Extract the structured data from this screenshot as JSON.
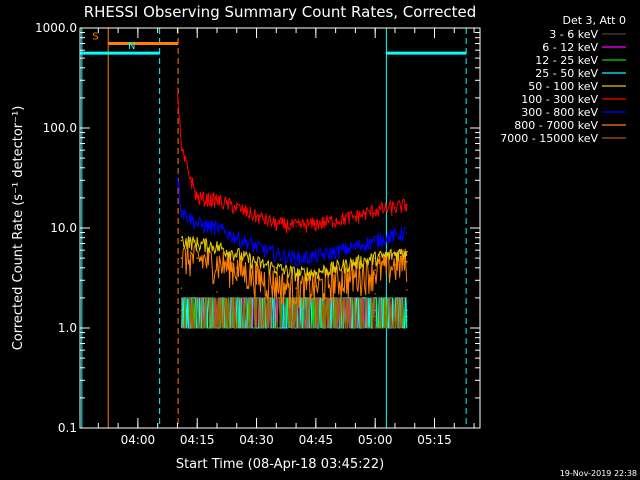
{
  "chart_data": {
    "type": "line",
    "title": "RHESSI Observing Summary Count Rates, Corrected",
    "xlabel": "Start Time (08-Apr-18 03:45:22)",
    "ylabel": "Corrected Count Rate (s⁻¹ detector⁻¹)",
    "footer": "19-Nov-2019 22:38",
    "y_scale": "log",
    "ylim": [
      0.1,
      1000
    ],
    "xlim": [
      "03:45:22",
      "05:26:30"
    ],
    "x_ticks": [
      "04:00",
      "04:15",
      "04:30",
      "04:45",
      "05:00",
      "05:15"
    ],
    "y_ticks": [
      "0.1",
      "1.0",
      "10.0",
      "100.0",
      "1000.0"
    ],
    "grid": false,
    "legend": {
      "position": "top-right",
      "title": "Det 3, Att 0",
      "entries": [
        {
          "label": "3 - 6 keV",
          "color": "#000000"
        },
        {
          "label": "6 - 12 keV",
          "color": "#ff00ff"
        },
        {
          "label": "12 - 25 keV",
          "color": "#00dd00"
        },
        {
          "label": "25 - 50 keV",
          "color": "#00ffff"
        },
        {
          "label": "50 - 100 keV",
          "color": "#e6c800"
        },
        {
          "label": "100 - 300 keV",
          "color": "#ff0000"
        },
        {
          "label": "300 - 800 keV",
          "color": "#0000ff"
        },
        {
          "label": "800 - 7000 keV",
          "color": "#ff8000"
        },
        {
          "label": "7000 - 15000 keV",
          "color": "#a06400"
        }
      ]
    },
    "flags": [
      {
        "label": "S",
        "color": "#ff8000",
        "start": "03:52:30",
        "end": "04:10:10",
        "level": 700
      },
      {
        "label": "N",
        "color": "#00ffff",
        "start": "03:45:22",
        "end": "04:05:30",
        "level": 560
      },
      {
        "label": "",
        "color": "#00ffff",
        "start": "05:02:50",
        "end": "05:23:00",
        "level": 560
      }
    ],
    "event_lines": [
      {
        "time": "03:52:30",
        "color": "#ff8000",
        "style": "solid"
      },
      {
        "time": "04:05:30",
        "color": "#00ffff",
        "style": "dashed"
      },
      {
        "time": "04:10:10",
        "color": "#ff8000",
        "style": "dashed"
      },
      {
        "time": "05:02:50",
        "color": "#00ffff",
        "style": "solid"
      },
      {
        "time": "05:23:00",
        "color": "#00ffff",
        "style": "dashed"
      },
      {
        "time": "03:45:50",
        "color": "#00ffff",
        "style": "solid"
      }
    ],
    "series": [
      {
        "name": "100 - 300 keV",
        "color": "#ff0000",
        "x": [
          "04:10:00",
          "04:11:00",
          "04:15:00",
          "04:20:00",
          "04:25:00",
          "04:30:00",
          "04:35:00",
          "04:40:00",
          "04:45:00",
          "04:50:00",
          "04:55:00",
          "05:00:00",
          "05:05:00",
          "05:08:00"
        ],
        "values": [
          250,
          60,
          20,
          19,
          16,
          13,
          11,
          10.5,
          11,
          12,
          13,
          15,
          16,
          17
        ]
      },
      {
        "name": "300 - 800 keV",
        "color": "#0000ff",
        "x": [
          "04:10:00",
          "04:11:00",
          "04:15:00",
          "04:20:00",
          "04:25:00",
          "04:30:00",
          "04:35:00",
          "04:40:00",
          "04:45:00",
          "04:50:00",
          "04:55:00",
          "05:00:00",
          "05:05:00",
          "05:08:00"
        ],
        "values": [
          35,
          15,
          11,
          10,
          8,
          6.5,
          5.5,
          5,
          5.2,
          5.8,
          6.5,
          7.5,
          8.5,
          9
        ]
      },
      {
        "name": "50 - 100 keV",
        "color": "#e6c800",
        "x": [
          "04:11:00",
          "04:15:00",
          "04:20:00",
          "04:25:00",
          "04:30:00",
          "04:35:00",
          "04:40:00",
          "04:45:00",
          "04:50:00",
          "04:55:00",
          "05:00:00",
          "05:05:00",
          "05:08:00"
        ],
        "values": [
          7.5,
          7,
          6.5,
          5.5,
          4.5,
          4,
          3.5,
          3.6,
          4,
          4.5,
          5,
          5.5,
          5.8
        ]
      },
      {
        "name": "800 - 7000 keV",
        "color": "#ff8000",
        "x": [
          "04:11:00",
          "04:15:00",
          "04:20:00",
          "04:25:00",
          "04:30:00",
          "04:35:00",
          "04:40:00",
          "04:45:00",
          "04:50:00",
          "04:55:00",
          "05:00:00",
          "05:05:00",
          "05:08:00"
        ],
        "values": [
          5,
          5,
          4.5,
          4,
          3.2,
          2.8,
          2.5,
          2.6,
          3,
          3.3,
          3.8,
          4.3,
          4.6
        ]
      },
      {
        "name": "7000 - 15000 keV",
        "color": "#a06400",
        "x": [
          "04:11:00",
          "04:20:00",
          "04:30:00",
          "04:40:00",
          "04:50:00",
          "05:00:00",
          "05:08:00"
        ],
        "values": [
          2.5,
          2.3,
          2.0,
          1.8,
          2.0,
          2.2,
          2.4
        ]
      },
      {
        "name": "25 - 50 keV",
        "color": "#00ffff",
        "x": [
          "04:11:00",
          "04:20:00",
          "04:30:00",
          "04:40:00",
          "04:50:00",
          "05:00:00",
          "05:08:00"
        ],
        "values": [
          1.5,
          1.5,
          1.5,
          1.4,
          1.5,
          1.5,
          1.5
        ]
      },
      {
        "name": "12 - 25 keV",
        "color": "#00dd00",
        "x": [
          "04:11:00",
          "04:20:00",
          "04:30:00",
          "04:40:00",
          "04:50:00",
          "05:00:00",
          "05:08:00"
        ],
        "values": [
          1.3,
          1.3,
          1.3,
          1.2,
          1.3,
          1.3,
          1.3
        ]
      },
      {
        "name": "6 - 12 keV",
        "color": "#ff00ff",
        "x": [
          "04:11:00",
          "04:20:00",
          "04:30:00",
          "04:40:00",
          "04:50:00",
          "05:00:00",
          "05:08:00"
        ],
        "values": [
          1.2,
          1.2,
          1.2,
          1.1,
          1.2,
          1.2,
          1.2
        ]
      },
      {
        "name": "3 - 6 keV",
        "color": "#000000",
        "x": [
          "04:11:00",
          "04:20:00",
          "04:30:00",
          "04:40:00",
          "04:50:00",
          "05:00:00",
          "05:08:00"
        ],
        "values": [
          1.1,
          1.1,
          1.1,
          1.0,
          1.1,
          1.1,
          1.1
        ]
      }
    ]
  }
}
